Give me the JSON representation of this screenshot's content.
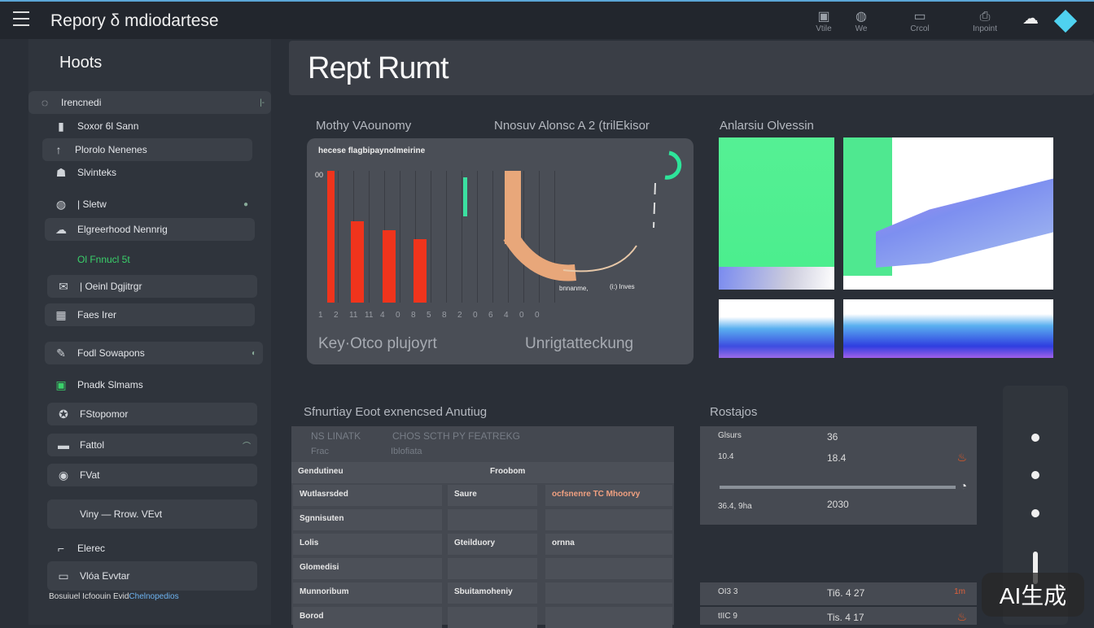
{
  "header": {
    "title": "Repory δ mdiodartese",
    "icons": [
      {
        "name": "tile-icon",
        "label": "Vtile"
      },
      {
        "name": "web-icon",
        "label": "We"
      },
      {
        "name": "control-icon",
        "label": "Crcol"
      },
      {
        "name": "import-icon",
        "label": "Inpoint"
      },
      {
        "name": "cloud-icon",
        "label": ""
      },
      {
        "name": "diamond-icon",
        "label": ""
      }
    ]
  },
  "sidebar": {
    "title": "Hoots",
    "items": [
      {
        "label": "Irencnedi",
        "icon": "user-icon",
        "trail": "|-"
      },
      {
        "label": "Soxor 6l Sann",
        "icon": "device-icon"
      },
      {
        "label": "Plorolo Nenenes",
        "icon": "trend-icon"
      },
      {
        "label": "Slvinteks",
        "icon": "robot-icon"
      },
      {
        "label": "| Sletw",
        "icon": "globe-icon",
        "trail": "●"
      },
      {
        "label": "Elgreerhood Nennrig",
        "icon": "cloud-icon"
      },
      {
        "label": "Ol Fnnucl 5t",
        "icon": ""
      },
      {
        "label": "| Oeinl Dgjitrgr",
        "icon": "mail-icon"
      },
      {
        "label": "Faes Irer",
        "icon": "grid-icon"
      },
      {
        "label": "Fodl Sowapons",
        "icon": "tools-icon",
        "trail": "◐"
      },
      {
        "label": "Pnadk Slmams",
        "icon": "monitor-icon"
      },
      {
        "label": "FStopomor",
        "icon": "badge-icon"
      },
      {
        "label": "Fattol",
        "icon": "card-icon",
        "trail": "⌒"
      },
      {
        "label": "FVat",
        "icon": "eye-icon"
      },
      {
        "label": "Viny — Rrow. VEvt",
        "icon": ""
      },
      {
        "label": "Elerec",
        "icon": "link-icon"
      },
      {
        "label": "Vlóa Evvtar",
        "icon": "avatar-icon"
      }
    ],
    "footer": "Bosuiuel Icfoouin Evid",
    "footer_link": "Chelnopedios"
  },
  "main": {
    "title": "Rept Rumt",
    "chart_section": {
      "left_title": "Mothy VAounomy",
      "right_title": "Nnosuv Alonsc A 2 (trilEkisor",
      "card_title": "hecese flagbipaynolmeirine",
      "y_label": "00",
      "bars": [
        {
          "value": 100,
          "color": "#f0341c"
        },
        {
          "value": 62,
          "color": "#f0341c"
        },
        {
          "value": 55,
          "color": "#f0341c"
        },
        {
          "value": 48,
          "color": "#f0341c"
        }
      ],
      "green_bar": {
        "value": 28,
        "color": "#3be0a0"
      },
      "x_ticks": [
        "1",
        "2",
        "11",
        "11",
        "4",
        "0",
        "8",
        "5",
        "8",
        "2",
        "0",
        "6",
        "4",
        "0",
        "0"
      ],
      "gauge_label_left": "bnnanme,",
      "gauge_label_right": "(i:)  Inves",
      "footer_left": "Key·Otco plujoyrt",
      "footer_right": "Unrigtatteckung",
      "accent_orange": "#e8a77a",
      "accent_green": "#2ee49a"
    },
    "image_section": {
      "title": "Anlarsiu Olvessin"
    },
    "table_section": {
      "title": "Sfnurtiay Eoot exnencsed Anutiug",
      "head": [
        "NS LINATK",
        "CHOS SCTH PY FEATREKG"
      ],
      "subhead": [
        "Frac",
        "Iblofiata"
      ],
      "rows": [
        [
          "Gendutineu",
          "Froobom",
          ""
        ],
        [
          "Wutlasrsded",
          "Saure",
          "ocfsnenre TC Mhoorvy"
        ],
        [
          "Sgnnisuten",
          "",
          ""
        ],
        [
          "Lolis",
          "Gteilduory",
          "ornna"
        ],
        [
          "Glomedisi",
          "",
          ""
        ],
        [
          "Munnoribum",
          "Sbuitamoheniy",
          ""
        ],
        [
          "Borod",
          "",
          ""
        ]
      ]
    },
    "results_section": {
      "title": "Rostajos",
      "rows": [
        {
          "a": "Glsurs",
          "b": "36",
          "c": ""
        },
        {
          "a": "10.4",
          "b": "18.4",
          "c": "fire-icon"
        },
        {
          "a": "36.4, 9ha",
          "b": "2030",
          "c": "clock-icon"
        },
        {
          "a": "OI3 3",
          "b": "Ti6. 4  27",
          "c": "1m"
        },
        {
          "a": "tIIC 9",
          "b": "Tis. 4  17",
          "c": "fire-icon"
        }
      ]
    }
  },
  "watermark": "AI生成",
  "colors": {
    "background": "#2a2f37",
    "accent_blue": "#4fd2f0",
    "bar_red": "#f0341c",
    "green": "#3be0a0"
  }
}
